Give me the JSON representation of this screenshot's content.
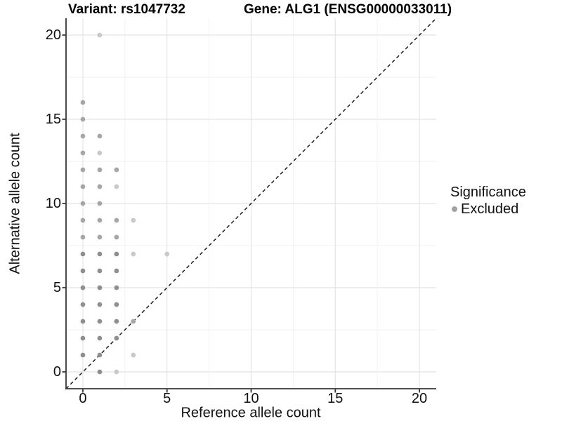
{
  "titles": {
    "variant": "Variant: rs1047732",
    "gene": "Gene: ALG1 (ENSG00000033011)"
  },
  "legend": {
    "title": "Significance",
    "items": [
      {
        "label": "Excluded",
        "color": "#a3a3a3"
      }
    ]
  },
  "chart_data": {
    "type": "scatter",
    "xlabel": "Reference allele count",
    "ylabel": "Alternative allele count",
    "xlim": [
      -1,
      21
    ],
    "ylim": [
      -1,
      21
    ],
    "x_ticks": [
      0,
      5,
      10,
      15,
      20
    ],
    "y_ticks": [
      0,
      5,
      10,
      15,
      20
    ],
    "x_minor_ticks": [
      2.5,
      7.5,
      12.5,
      17.5
    ],
    "y_minor_ticks": [
      2.5,
      7.5,
      12.5,
      17.5
    ],
    "grid": true,
    "legend_position": "right",
    "identity_line": {
      "style": "dashed",
      "from": [
        -1,
        -1
      ],
      "to": [
        21,
        21
      ],
      "color": "#111111"
    },
    "colors": {
      "major_grid": "#e4e4e4",
      "minor_grid": "#f1f1f1",
      "axis_line": "#383838",
      "point_light": "#c9c9c9",
      "point_mid": "#a6a6a6",
      "point_dark": "#8f8f8f"
    },
    "points": [
      {
        "x": 0,
        "y": 16,
        "shade": "mid"
      },
      {
        "x": 0,
        "y": 15,
        "shade": "mid"
      },
      {
        "x": 0,
        "y": 14,
        "shade": "mid"
      },
      {
        "x": 0,
        "y": 13,
        "shade": "mid"
      },
      {
        "x": 0,
        "y": 12,
        "shade": "mid"
      },
      {
        "x": 0,
        "y": 11,
        "shade": "mid"
      },
      {
        "x": 0,
        "y": 10,
        "shade": "mid"
      },
      {
        "x": 0,
        "y": 9,
        "shade": "mid"
      },
      {
        "x": 0,
        "y": 8,
        "shade": "mid"
      },
      {
        "x": 0,
        "y": 7,
        "shade": "dark"
      },
      {
        "x": 0,
        "y": 6,
        "shade": "dark"
      },
      {
        "x": 0,
        "y": 5,
        "shade": "dark"
      },
      {
        "x": 0,
        "y": 4,
        "shade": "dark"
      },
      {
        "x": 0,
        "y": 3,
        "shade": "dark"
      },
      {
        "x": 0,
        "y": 2,
        "shade": "dark"
      },
      {
        "x": 0,
        "y": 1,
        "shade": "dark"
      },
      {
        "x": 1,
        "y": 20,
        "shade": "light"
      },
      {
        "x": 1,
        "y": 14,
        "shade": "mid"
      },
      {
        "x": 1,
        "y": 13,
        "shade": "light"
      },
      {
        "x": 1,
        "y": 12,
        "shade": "mid"
      },
      {
        "x": 1,
        "y": 11,
        "shade": "mid"
      },
      {
        "x": 1,
        "y": 10,
        "shade": "mid"
      },
      {
        "x": 1,
        "y": 9,
        "shade": "mid"
      },
      {
        "x": 1,
        "y": 8,
        "shade": "mid"
      },
      {
        "x": 1,
        "y": 7,
        "shade": "dark"
      },
      {
        "x": 1,
        "y": 6,
        "shade": "dark"
      },
      {
        "x": 1,
        "y": 5,
        "shade": "dark"
      },
      {
        "x": 1,
        "y": 4,
        "shade": "dark"
      },
      {
        "x": 1,
        "y": 3,
        "shade": "dark"
      },
      {
        "x": 1,
        "y": 2,
        "shade": "dark"
      },
      {
        "x": 1,
        "y": 1,
        "shade": "dark"
      },
      {
        "x": 1,
        "y": 0,
        "shade": "dark"
      },
      {
        "x": 2,
        "y": 12,
        "shade": "mid"
      },
      {
        "x": 2,
        "y": 11,
        "shade": "light"
      },
      {
        "x": 2,
        "y": 9,
        "shade": "mid"
      },
      {
        "x": 2,
        "y": 8,
        "shade": "mid"
      },
      {
        "x": 2,
        "y": 7,
        "shade": "dark"
      },
      {
        "x": 2,
        "y": 6,
        "shade": "dark"
      },
      {
        "x": 2,
        "y": 5,
        "shade": "dark"
      },
      {
        "x": 2,
        "y": 4,
        "shade": "dark"
      },
      {
        "x": 2,
        "y": 3,
        "shade": "dark"
      },
      {
        "x": 2,
        "y": 2,
        "shade": "dark"
      },
      {
        "x": 2,
        "y": 0,
        "shade": "light"
      },
      {
        "x": 3,
        "y": 9,
        "shade": "light"
      },
      {
        "x": 3,
        "y": 7,
        "shade": "light"
      },
      {
        "x": 3,
        "y": 3,
        "shade": "mid"
      },
      {
        "x": 3,
        "y": 1,
        "shade": "light"
      },
      {
        "x": 5,
        "y": 7,
        "shade": "light"
      }
    ]
  }
}
